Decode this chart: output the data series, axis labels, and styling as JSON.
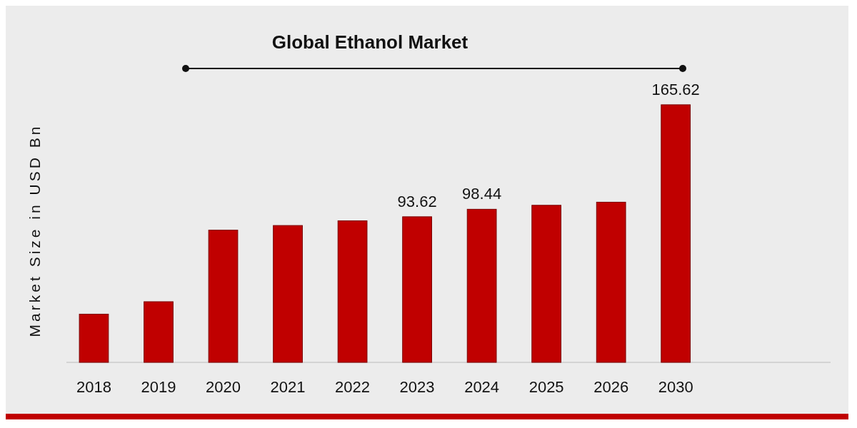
{
  "chart_data": {
    "type": "bar",
    "title": "Global Ethanol Market",
    "ylabel": "Market Size in USD Bn",
    "categories": [
      "2018",
      "2019",
      "2020",
      "2021",
      "2022",
      "2023",
      "2024",
      "2025",
      "2026",
      "2030"
    ],
    "values": [
      31,
      39,
      85,
      88,
      91,
      93.62,
      98.44,
      101,
      103,
      165.62
    ],
    "value_labels": [
      null,
      null,
      null,
      null,
      null,
      "93.62",
      "98.44",
      null,
      null,
      "165.62"
    ],
    "color": "#c00000",
    "grid": false
  }
}
